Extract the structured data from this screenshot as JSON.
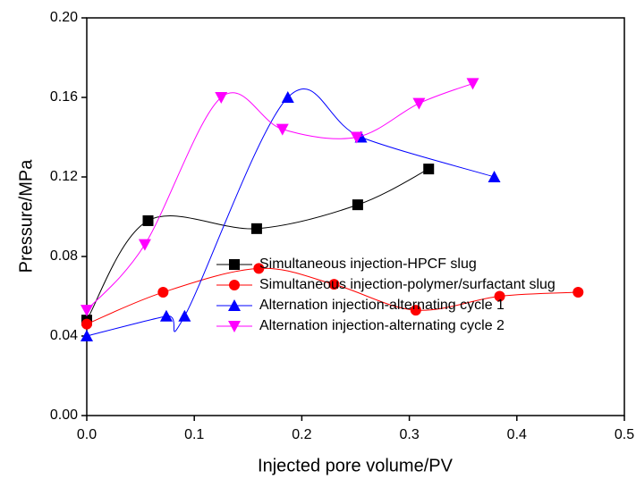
{
  "chart_data": {
    "type": "line",
    "xlabel": "Injected pore volume/PV",
    "ylabel": "Pressure/MPa",
    "xlim": [
      0,
      0.5
    ],
    "ylim": [
      0,
      0.2
    ],
    "xticks": [
      {
        "value": 0,
        "label": "0.0"
      },
      {
        "value": 0.1,
        "label": "0.1"
      },
      {
        "value": 0.2,
        "label": "0.2"
      },
      {
        "value": 0.3,
        "label": "0.3"
      },
      {
        "value": 0.4,
        "label": "0.4"
      },
      {
        "value": 0.5,
        "label": "0.5"
      }
    ],
    "yticks": [
      {
        "value": 0,
        "label": "0.00"
      },
      {
        "value": 0.04,
        "label": "0.04"
      },
      {
        "value": 0.08,
        "label": "0.08"
      },
      {
        "value": 0.12,
        "label": "0.12"
      },
      {
        "value": 0.16,
        "label": "0.16"
      },
      {
        "value": 0.2,
        "label": "0.20"
      }
    ],
    "legend": "lower right",
    "series": [
      {
        "name": "Simultaneous injection-HPCF slug",
        "color": "#000000",
        "marker": "square",
        "x": [
          0,
          0.057,
          0.158,
          0.252,
          0.318
        ],
        "values": [
          0.048,
          0.098,
          0.094,
          0.106,
          0.124
        ]
      },
      {
        "name": "Simultaneous injection-polymer/surfactant slug",
        "color": "#ff0000",
        "marker": "circle",
        "x": [
          0,
          0.071,
          0.16,
          0.23,
          0.306,
          0.384,
          0.457
        ],
        "values": [
          0.046,
          0.062,
          0.074,
          0.066,
          0.053,
          0.06,
          0.062
        ]
      },
      {
        "name": "Alternation injection-alternating cycle 1",
        "color": "#0000ff",
        "marker": "triangle-up",
        "x": [
          0,
          0.074,
          0.091,
          0.187,
          0.255,
          0.379
        ],
        "values": [
          0.04,
          0.05,
          0.05,
          0.16,
          0.14,
          0.12
        ]
      },
      {
        "name": "Alternation injection-alternating cycle 2",
        "color": "#ff00ff",
        "marker": "triangle-down",
        "x": [
          0,
          0.054,
          0.125,
          0.182,
          0.251,
          0.309,
          0.359
        ],
        "values": [
          0.053,
          0.086,
          0.16,
          0.144,
          0.14,
          0.157,
          0.167
        ]
      }
    ]
  }
}
